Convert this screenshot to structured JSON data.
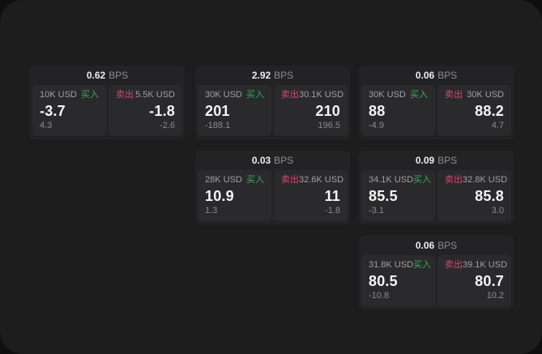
{
  "labels": {
    "bps": "BPS",
    "buy": "买入",
    "sell": "卖出"
  },
  "colors": {
    "panel_bg": "#1d1d1e",
    "card_bg": "#232325",
    "side_bg": "#2a2a2c",
    "buy_accent": "#34ad5e",
    "sell_accent": "#d04a6b"
  },
  "cards": [
    {
      "col": 1,
      "row": 1,
      "spread": "0.62",
      "buy": {
        "amount": "10K USD",
        "price": "-3.7",
        "delta": "4.3"
      },
      "sell": {
        "amount": "5.5K USD",
        "price": "-1.8",
        "delta": "-2.6"
      }
    },
    {
      "col": 2,
      "row": 1,
      "spread": "2.92",
      "buy": {
        "amount": "30K USD",
        "price": "201",
        "delta": "-188.1"
      },
      "sell": {
        "amount": "30.1K USD",
        "price": "210",
        "delta": "196.5"
      }
    },
    {
      "col": 3,
      "row": 1,
      "spread": "0.06",
      "buy": {
        "amount": "30K USD",
        "price": "88",
        "delta": "-4.9"
      },
      "sell": {
        "amount": "30K USD",
        "price": "88.2",
        "delta": "4.7"
      }
    },
    {
      "col": 2,
      "row": 2,
      "spread": "0.03",
      "buy": {
        "amount": "28K USD",
        "price": "10.9",
        "delta": "1.3"
      },
      "sell": {
        "amount": "32.6K USD",
        "price": "11",
        "delta": "-1.8"
      }
    },
    {
      "col": 3,
      "row": 2,
      "spread": "0.09",
      "buy": {
        "amount": "34.1K USD",
        "price": "85.5",
        "delta": "-3.1"
      },
      "sell": {
        "amount": "32.8K USD",
        "price": "85.8",
        "delta": "3.0"
      }
    },
    {
      "col": 3,
      "row": 3,
      "spread": "0.06",
      "buy": {
        "amount": "31.8K USD",
        "price": "80.5",
        "delta": "-10.8"
      },
      "sell": {
        "amount": "39.1K USD",
        "price": "80.7",
        "delta": "10.2"
      }
    }
  ]
}
